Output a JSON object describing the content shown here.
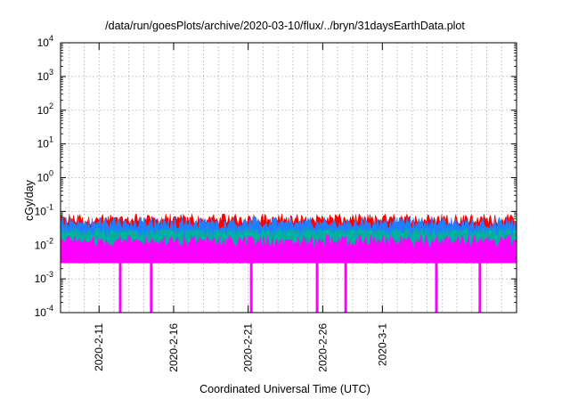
{
  "chart_data": {
    "type": "area",
    "title": "/data/run/goesPlots/archive/2020-03-10/flux/../bryn/31daysEarthData.plot",
    "xlabel": "Coordinated Universal Time (UTC)",
    "ylabel": "cGy/day",
    "yscale": "log",
    "ylim": [
      0.0001,
      10000
    ],
    "xlim": [
      "2020-02-08T10:00",
      "2020-03-10T00:00"
    ],
    "grid": true,
    "ytick_values": [
      0.0001,
      0.001,
      0.01,
      0.1,
      1,
      10,
      100,
      1000,
      10000
    ],
    "ytick_labels": [
      {
        "base": "10",
        "exp": "-4"
      },
      {
        "base": "10",
        "exp": "-3"
      },
      {
        "base": "10",
        "exp": "-2"
      },
      {
        "base": "10",
        "exp": "-1"
      },
      {
        "base": "10",
        "exp": "0"
      },
      {
        "base": "10",
        "exp": "1"
      },
      {
        "base": "10",
        "exp": "2"
      },
      {
        "base": "10",
        "exp": "3"
      },
      {
        "base": "10",
        "exp": "4"
      }
    ],
    "xtick_labels": [
      "2020-2-11",
      "2020-2-16",
      "2020-2-21",
      "2020-2-26",
      "2020-3-1"
    ],
    "xtick_dates": [
      "2020-02-11",
      "2020-02-16",
      "2020-02-21",
      "2020-02-26",
      "2020-03-01"
    ],
    "series": [
      {
        "color": "#ff0000",
        "low": 0.003,
        "typical": 0.055,
        "peak": 0.085
      },
      {
        "color": "#1e7fff",
        "low": 0.003,
        "typical": 0.042,
        "peak": 0.07
      },
      {
        "color": "#00b0a0",
        "low": 0.003,
        "typical": 0.024,
        "peak": 0.032
      },
      {
        "color": "#ff00ff",
        "low": 0.003,
        "typical": 0.012,
        "peak": 0.02
      }
    ],
    "dropouts": [
      {
        "date": "2020-02-12T10:00",
        "value": 0.0001
      },
      {
        "date": "2020-02-14T12:00",
        "value": 0.0001
      },
      {
        "date": "2020-02-21T05:00",
        "value": 0.0001
      },
      {
        "date": "2020-02-25T15:00",
        "value": 0.0001
      },
      {
        "date": "2020-02-27T13:00",
        "value": 0.0001
      },
      {
        "date": "2020-03-04T15:00",
        "value": 0.0001
      },
      {
        "date": "2020-03-07T13:00",
        "value": 0.0001
      }
    ]
  }
}
